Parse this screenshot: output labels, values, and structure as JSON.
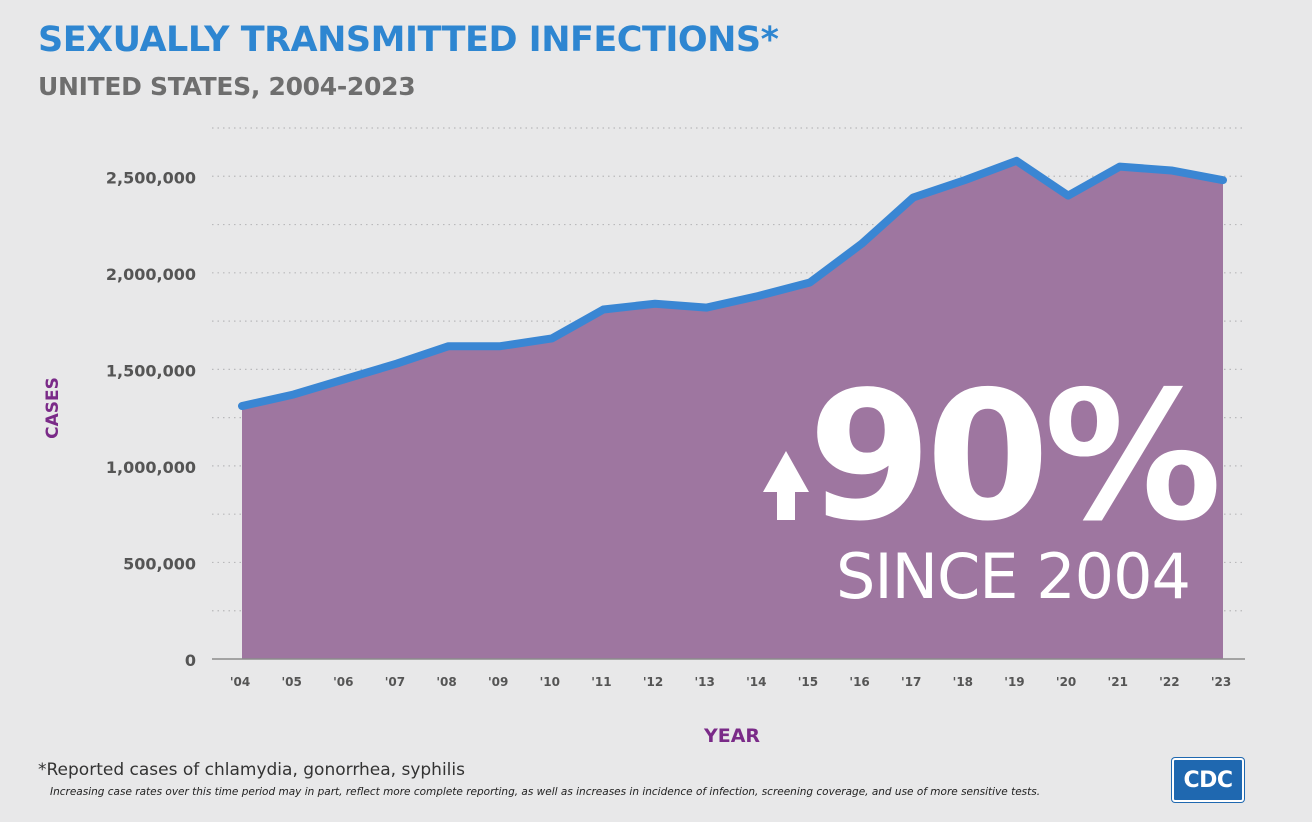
{
  "header": {
    "title": "SEXUALLY TRANSMITTED INFECTIONS*",
    "subtitle": "UNITED STATES, 2004-2023"
  },
  "callout": {
    "big": "90%",
    "sub": "SINCE 2004",
    "arrow_icon": "up-arrow-icon"
  },
  "footer": {
    "footnote": "*Reported cases of chlamydia, gonorrhea, syphilis",
    "disclaimer": "Increasing case rates over this time period may in part, reflect more complete reporting, as well as increases in incidence of infection, screening coverage, and use of more sensitive tests.",
    "logo": "CDC"
  },
  "colors": {
    "title": "#2e86d1",
    "subtitle": "#6e6e6e",
    "area_fill": "#9e76a0",
    "line": "#3a86d3",
    "axis_label": "#7a2a88",
    "background": "#e8e8e9",
    "callout_text": "#ffffff"
  },
  "chart_data": {
    "type": "area",
    "title": "SEXUALLY TRANSMITTED INFECTIONS*",
    "subtitle": "UNITED STATES, 2004-2023",
    "xlabel": "YEAR",
    "ylabel": "CASES",
    "categories": [
      "'04",
      "'05",
      "'06",
      "'07",
      "'08",
      "'09",
      "'10",
      "'11",
      "'12",
      "'13",
      "'14",
      "'15",
      "'16",
      "'17",
      "'18",
      "'19",
      "'20",
      "'21",
      "'22",
      "'23"
    ],
    "series": [
      {
        "values": [
          1310000,
          1370000,
          1450000,
          1530000,
          1620000,
          1620000,
          1660000,
          1810000,
          1840000,
          1820000,
          1880000,
          1950000,
          2150000,
          2390000,
          2480000,
          2580000,
          2400000,
          2550000,
          2530000,
          2480000
        ]
      }
    ],
    "ylim": [
      0,
      2750000
    ],
    "yticks": [
      0,
      500000,
      1000000,
      1500000,
      2000000,
      2500000
    ],
    "ytick_labels": [
      "0",
      "500,000",
      "1,000,000",
      "1,500,000",
      "2,000,000",
      "2,500,000"
    ],
    "grid": true,
    "legend": "none"
  }
}
